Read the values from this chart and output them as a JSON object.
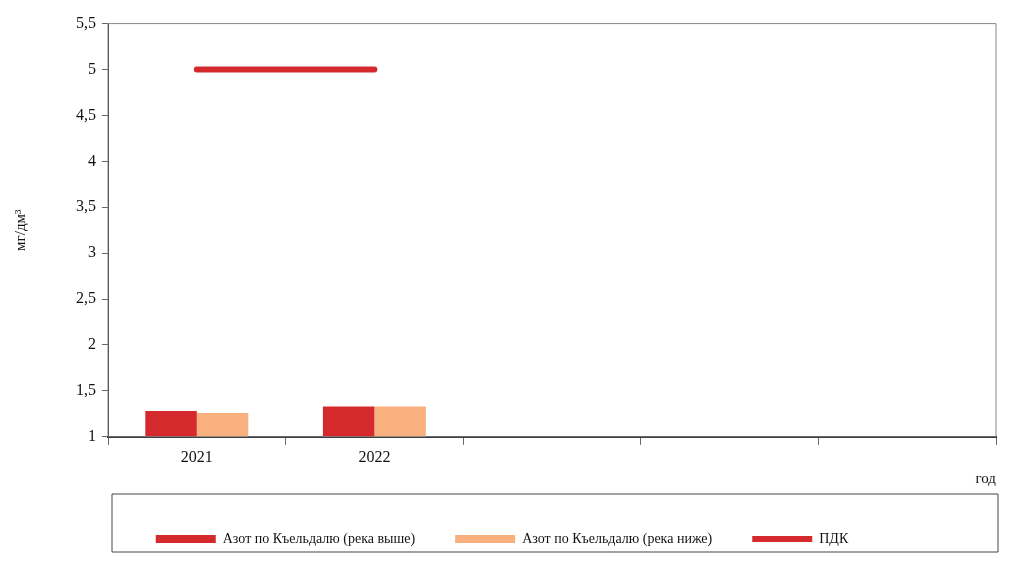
{
  "chart_data": {
    "type": "bar",
    "xlabel": "год",
    "ylabel": "мг/дм³",
    "categories": [
      "2021",
      "2022",
      null,
      null,
      null
    ],
    "series": [
      {
        "name": "Азот по Къельдалю (река выше)",
        "color": "#d42a2e",
        "values": [
          1.28,
          1.33,
          null,
          null,
          null
        ]
      },
      {
        "name": "Азот по Къельдалю (река ниже)",
        "color": "#f7b07e",
        "values": [
          1.26,
          1.33,
          null,
          null,
          null
        ]
      },
      {
        "name": "ПДК",
        "type": "line",
        "color": "#d42a2e",
        "values": [
          5,
          5,
          null,
          null,
          null
        ]
      }
    ],
    "ylim": [
      1,
      5.5
    ],
    "yticks": [
      {
        "value": 1,
        "label": "1"
      },
      {
        "value": 1.5,
        "label": "1,5"
      },
      {
        "value": 2,
        "label": "2"
      },
      {
        "value": 2.5,
        "label": "2,5"
      },
      {
        "value": 3,
        "label": "3"
      },
      {
        "value": 3.5,
        "label": "3,5"
      },
      {
        "value": 4,
        "label": "4"
      },
      {
        "value": 4.5,
        "label": "4,5"
      },
      {
        "value": 5,
        "label": "5"
      },
      {
        "value": 5.5,
        "label": "5,5"
      }
    ],
    "grid": false,
    "legend": "bottom"
  }
}
